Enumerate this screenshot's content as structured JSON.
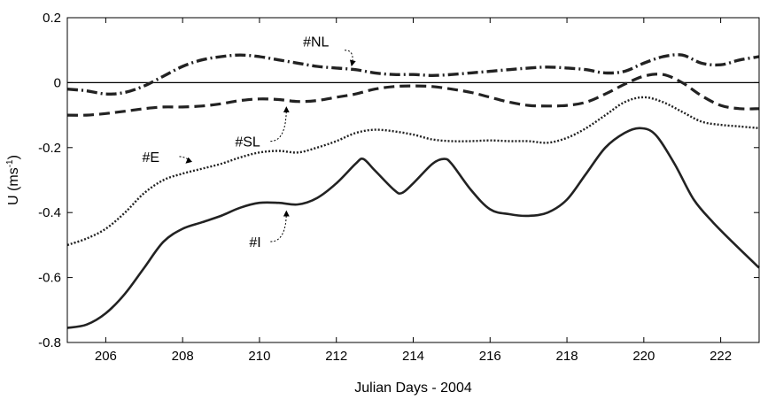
{
  "chart_data": {
    "type": "line",
    "xlabel": "Julian Days - 2004",
    "ylabel": "U (ms",
    "ylabel_sup": "-1",
    "ylabel_close": ")",
    "xlim": [
      205,
      223
    ],
    "ylim": [
      -0.8,
      0.2
    ],
    "xticks": [
      206,
      208,
      210,
      212,
      214,
      216,
      218,
      220,
      222
    ],
    "xtick_labels": [
      "206",
      "208",
      "210",
      "212",
      "214",
      "216",
      "218",
      "220",
      "222"
    ],
    "yticks": [
      0.2,
      0,
      -0.2,
      -0.4,
      -0.6,
      -0.8
    ],
    "ytick_labels": [
      "0.2",
      "0",
      "-0.2",
      "-0.4",
      "-0.6",
      "-0.8"
    ],
    "grid": false,
    "legend": "none",
    "zero_line": 0,
    "series": [
      {
        "name": "#NL",
        "style": "dashdot",
        "x": [
          205,
          205.5,
          206,
          206.5,
          207,
          207.5,
          208,
          208.5,
          209,
          209.5,
          210,
          210.5,
          211,
          211.5,
          212,
          212.5,
          213,
          213.5,
          214,
          214.5,
          215,
          215.5,
          216,
          216.5,
          217,
          217.5,
          218,
          218.5,
          219,
          219.5,
          220,
          220.5,
          221,
          221.5,
          222,
          222.5,
          223
        ],
        "y": [
          -0.02,
          -0.025,
          -0.035,
          -0.03,
          -0.01,
          0.02,
          0.05,
          0.07,
          0.08,
          0.085,
          0.08,
          0.07,
          0.06,
          0.05,
          0.045,
          0.04,
          0.03,
          0.025,
          0.025,
          0.022,
          0.025,
          0.03,
          0.035,
          0.04,
          0.045,
          0.048,
          0.045,
          0.04,
          0.03,
          0.035,
          0.06,
          0.08,
          0.085,
          0.06,
          0.055,
          0.07,
          0.08
        ]
      },
      {
        "name": "#SL",
        "style": "dashed",
        "x": [
          205,
          205.5,
          206,
          206.5,
          207,
          207.5,
          208,
          208.5,
          209,
          209.5,
          210,
          210.5,
          211,
          211.5,
          212,
          212.5,
          213,
          213.5,
          214,
          214.5,
          215,
          215.5,
          216,
          216.5,
          217,
          217.5,
          218,
          218.5,
          219,
          219.5,
          220,
          220.5,
          221,
          221.5,
          222,
          222.5,
          223
        ],
        "y": [
          -0.1,
          -0.1,
          -0.095,
          -0.088,
          -0.08,
          -0.075,
          -0.075,
          -0.072,
          -0.065,
          -0.055,
          -0.05,
          -0.052,
          -0.058,
          -0.055,
          -0.045,
          -0.035,
          -0.02,
          -0.012,
          -0.01,
          -0.012,
          -0.02,
          -0.03,
          -0.045,
          -0.06,
          -0.07,
          -0.072,
          -0.07,
          -0.06,
          -0.035,
          -0.005,
          0.02,
          0.025,
          0.0,
          -0.04,
          -0.07,
          -0.08,
          -0.08
        ]
      },
      {
        "name": "#E",
        "style": "dotted",
        "x": [
          205,
          205.5,
          206,
          206.5,
          207,
          207.5,
          208,
          208.5,
          209,
          209.5,
          210,
          210.5,
          211,
          211.5,
          212,
          212.5,
          213,
          213.5,
          214,
          214.5,
          215,
          215.5,
          216,
          216.5,
          217,
          217.5,
          218,
          218.5,
          219,
          219.5,
          220,
          220.5,
          221,
          221.5,
          222,
          222.5,
          223
        ],
        "y": [
          -0.5,
          -0.48,
          -0.45,
          -0.4,
          -0.34,
          -0.3,
          -0.28,
          -0.265,
          -0.25,
          -0.23,
          -0.215,
          -0.21,
          -0.215,
          -0.2,
          -0.18,
          -0.155,
          -0.145,
          -0.15,
          -0.16,
          -0.175,
          -0.18,
          -0.18,
          -0.178,
          -0.18,
          -0.18,
          -0.185,
          -0.17,
          -0.14,
          -0.1,
          -0.06,
          -0.045,
          -0.06,
          -0.09,
          -0.12,
          -0.13,
          -0.135,
          -0.14
        ]
      },
      {
        "name": "#I",
        "style": "solid",
        "x": [
          205,
          205.5,
          206,
          206.5,
          207,
          207.5,
          208,
          208.5,
          209,
          209.5,
          210,
          210.5,
          211,
          211.5,
          212,
          212.5,
          212.7,
          213,
          213.5,
          213.7,
          214,
          214.5,
          214.8,
          215,
          215.5,
          216,
          216.5,
          217,
          217.5,
          218,
          218.5,
          219,
          219.5,
          219.9,
          220.3,
          220.8,
          221.3,
          221.8,
          222.3,
          223
        ],
        "y": [
          -0.755,
          -0.745,
          -0.71,
          -0.65,
          -0.57,
          -0.49,
          -0.45,
          -0.43,
          -0.41,
          -0.385,
          -0.37,
          -0.37,
          -0.375,
          -0.355,
          -0.31,
          -0.25,
          -0.235,
          -0.27,
          -0.33,
          -0.34,
          -0.31,
          -0.25,
          -0.235,
          -0.25,
          -0.33,
          -0.39,
          -0.405,
          -0.41,
          -0.4,
          -0.36,
          -0.28,
          -0.2,
          -0.155,
          -0.14,
          -0.16,
          -0.25,
          -0.36,
          -0.43,
          -0.49,
          -0.57
        ]
      }
    ],
    "annotations": [
      {
        "text": "#NL",
        "series": "#NL",
        "x": 212.4,
        "y": 0.04
      },
      {
        "text": "#SL",
        "series": "#SL",
        "x": 210.7,
        "y": -0.055
      },
      {
        "text": "#E",
        "series": "#E",
        "x": 208.1,
        "y": -0.26
      },
      {
        "text": "#I",
        "series": "#I",
        "x": 210.7,
        "y": -0.375
      }
    ]
  }
}
